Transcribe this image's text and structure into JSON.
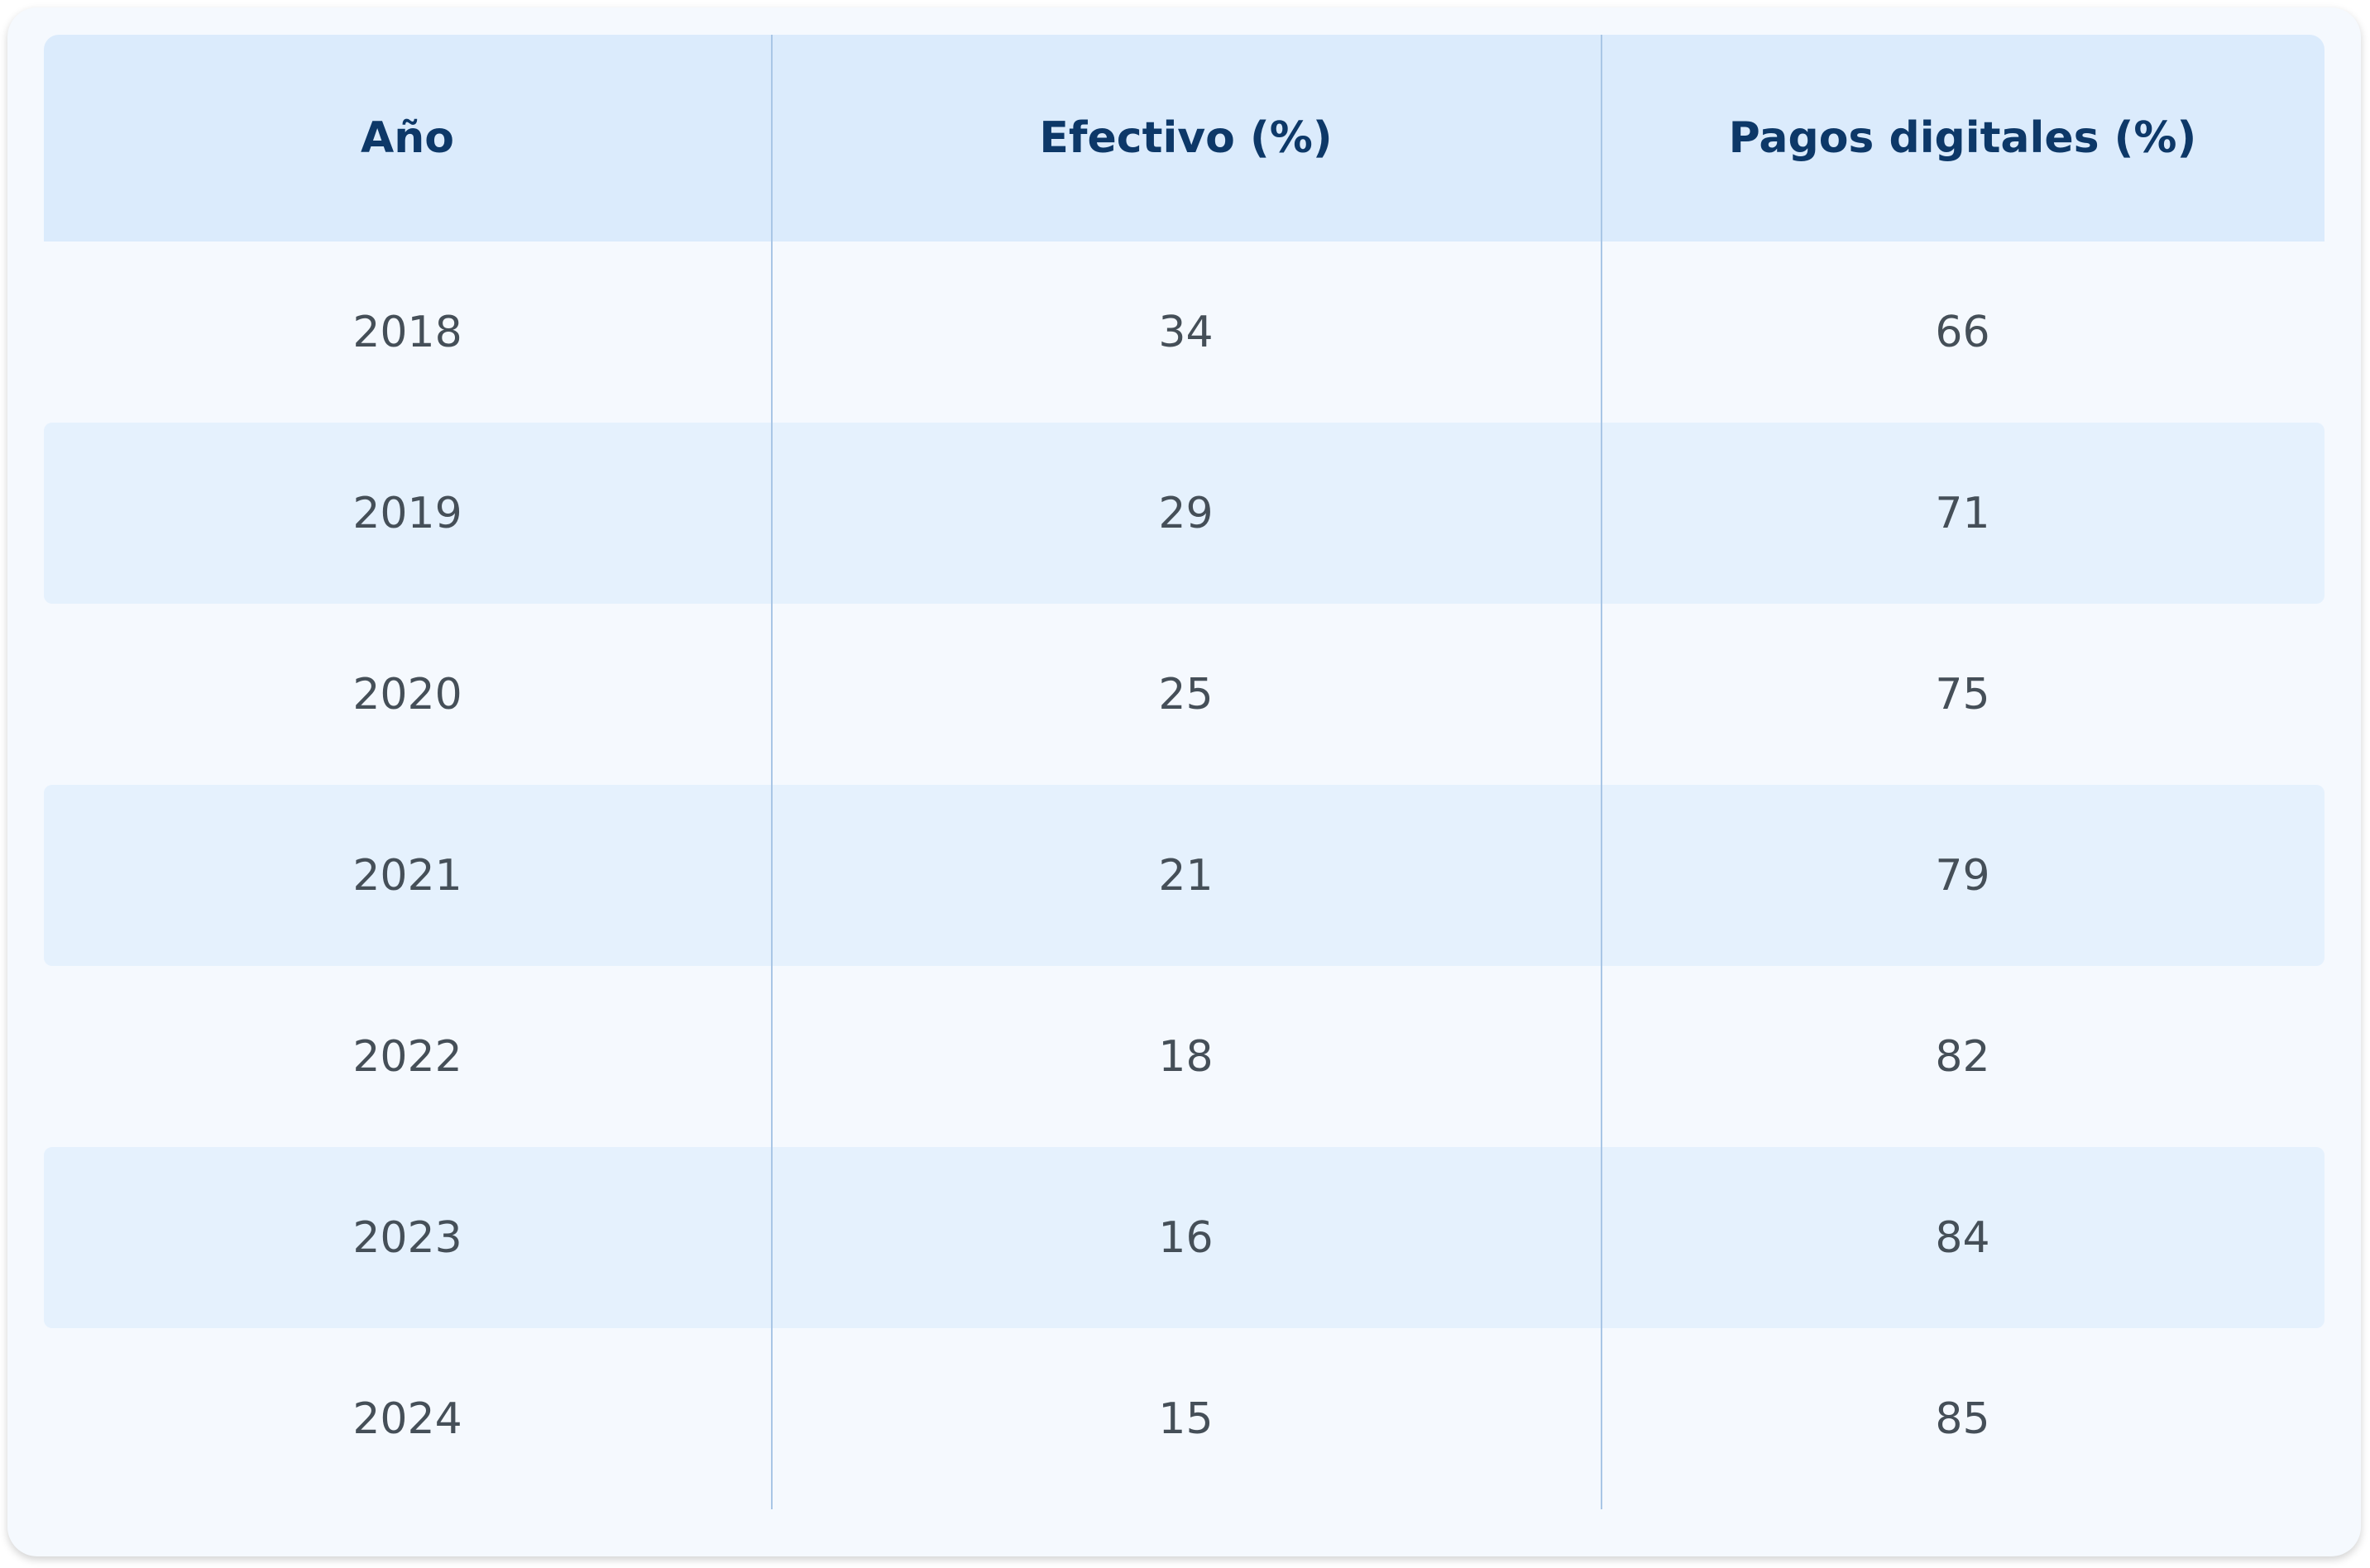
{
  "table": {
    "header": [
      "Año",
      "Efectivo (%)",
      "Pagos digitales (%)"
    ],
    "rows": [
      [
        2018,
        34,
        66
      ],
      [
        2019,
        29,
        71
      ],
      [
        2020,
        25,
        75
      ],
      [
        2021,
        21,
        79
      ],
      [
        2022,
        18,
        82
      ],
      [
        2023,
        16,
        84
      ],
      [
        2024,
        15,
        85
      ]
    ]
  }
}
